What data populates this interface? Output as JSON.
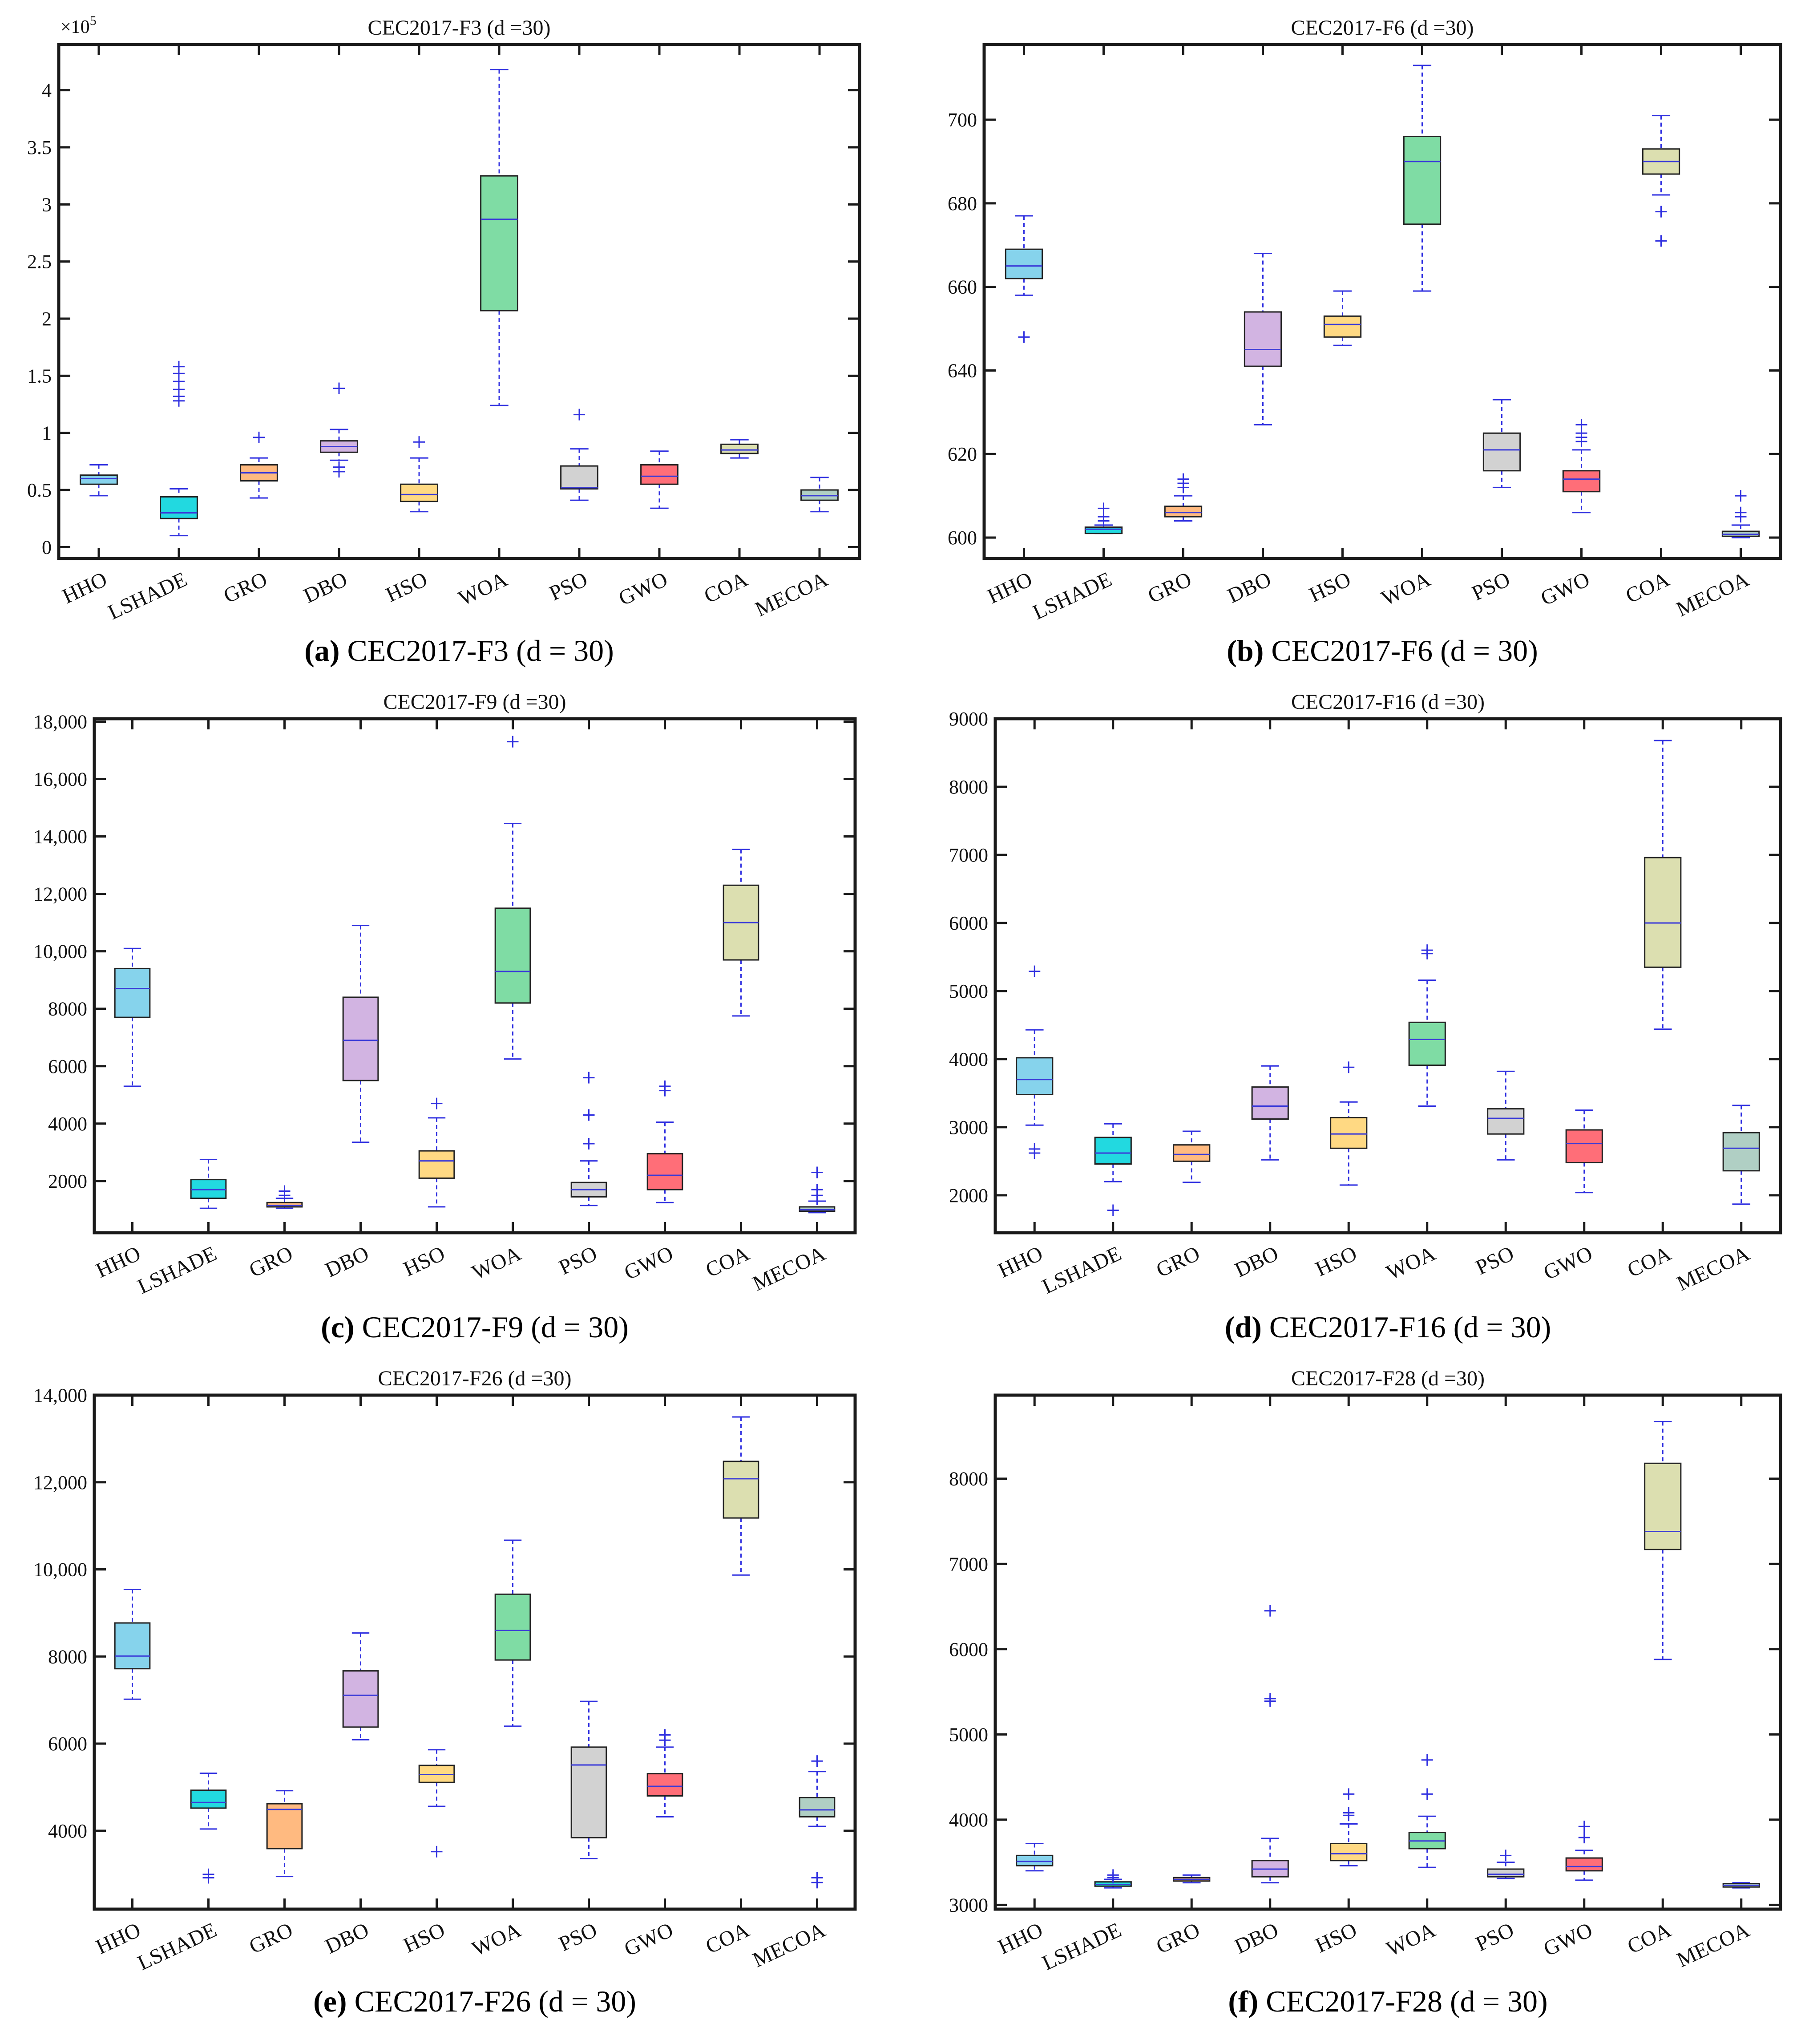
{
  "figure": {
    "categories": [
      "HHO",
      "LSHADE",
      "GRO",
      "DBO",
      "HSO",
      "WOA",
      "PSO",
      "GWO",
      "COA",
      "MECOA"
    ],
    "colors": [
      "#86d3ec",
      "#22d9e0",
      "#ffba80",
      "#d2b4e2",
      "#ffd983",
      "#7fdca4",
      "#d2d2d2",
      "#ff6e78",
      "#dcdfb0",
      "#b0cfc4"
    ]
  },
  "chart_data": [
    {
      "type": "box",
      "title": "CEC2017-F3 (d =30)",
      "caption": {
        "label": "(a)",
        "text": " CEC2017-F3 (d = 30)"
      },
      "exponent_label": "×10",
      "exponent_power": "5",
      "ylim": [
        -0.1,
        4.4
      ],
      "yticks": [
        0,
        0.5,
        1,
        1.5,
        2,
        2.5,
        3,
        3.5,
        4
      ],
      "ytick_labels": [
        "0",
        "0.5",
        "1",
        "1.5",
        "2",
        "2.5",
        "3",
        "3.5",
        "4"
      ],
      "boxes": [
        {
          "whisker_low": 0.45,
          "q1": 0.55,
          "median": 0.6,
          "q3": 0.63,
          "whisker_high": 0.72,
          "outliers": []
        },
        {
          "whisker_low": 0.1,
          "q1": 0.25,
          "median": 0.3,
          "q3": 0.44,
          "whisker_high": 0.51,
          "outliers": [
            1.28,
            1.32,
            1.38,
            1.45,
            1.52,
            1.58
          ]
        },
        {
          "whisker_low": 0.43,
          "q1": 0.58,
          "median": 0.65,
          "q3": 0.72,
          "whisker_high": 0.78,
          "outliers": [
            0.96
          ]
        },
        {
          "whisker_low": 0.76,
          "q1": 0.83,
          "median": 0.88,
          "q3": 0.93,
          "whisker_high": 1.03,
          "outliers": [
            0.66,
            0.7,
            1.39
          ]
        },
        {
          "whisker_low": 0.31,
          "q1": 0.4,
          "median": 0.46,
          "q3": 0.55,
          "whisker_high": 0.78,
          "outliers": [
            0.92
          ]
        },
        {
          "whisker_low": 1.24,
          "q1": 2.07,
          "median": 2.87,
          "q3": 3.25,
          "whisker_high": 4.18,
          "outliers": []
        },
        {
          "whisker_low": 0.41,
          "q1": 0.51,
          "median": 0.52,
          "q3": 0.71,
          "whisker_high": 0.86,
          "outliers": [
            1.16
          ]
        },
        {
          "whisker_low": 0.34,
          "q1": 0.55,
          "median": 0.62,
          "q3": 0.72,
          "whisker_high": 0.84,
          "outliers": []
        },
        {
          "whisker_low": 0.78,
          "q1": 0.82,
          "median": 0.85,
          "q3": 0.9,
          "whisker_high": 0.94,
          "outliers": []
        },
        {
          "whisker_low": 0.31,
          "q1": 0.41,
          "median": 0.45,
          "q3": 0.5,
          "whisker_high": 0.61,
          "outliers": []
        }
      ]
    },
    {
      "type": "box",
      "title": "CEC2017-F6 (d =30)",
      "caption": {
        "label": "(b)",
        "text": " CEC2017-F6 (d = 30)"
      },
      "ylim": [
        595,
        718
      ],
      "yticks": [
        600,
        620,
        640,
        660,
        680,
        700
      ],
      "ytick_labels": [
        "600",
        "620",
        "640",
        "660",
        "680",
        "700"
      ],
      "boxes": [
        {
          "whisker_low": 658,
          "q1": 662,
          "median": 665,
          "q3": 669,
          "whisker_high": 677,
          "outliers": [
            648
          ]
        },
        {
          "whisker_low": 601,
          "q1": 601,
          "median": 602,
          "q3": 602.5,
          "whisker_high": 603,
          "outliers": [
            604,
            605,
            607
          ]
        },
        {
          "whisker_low": 604,
          "q1": 605,
          "median": 606,
          "q3": 607.5,
          "whisker_high": 610,
          "outliers": [
            612,
            613,
            614
          ]
        },
        {
          "whisker_low": 627,
          "q1": 641,
          "median": 645,
          "q3": 654,
          "whisker_high": 668,
          "outliers": []
        },
        {
          "whisker_low": 646,
          "q1": 648,
          "median": 651,
          "q3": 653,
          "whisker_high": 659,
          "outliers": []
        },
        {
          "whisker_low": 659,
          "q1": 675,
          "median": 690,
          "q3": 696,
          "whisker_high": 713,
          "outliers": []
        },
        {
          "whisker_low": 612,
          "q1": 616,
          "median": 621,
          "q3": 625,
          "whisker_high": 633,
          "outliers": []
        },
        {
          "whisker_low": 606,
          "q1": 611,
          "median": 614,
          "q3": 616,
          "whisker_high": 621,
          "outliers": [
            623,
            624,
            625,
            627
          ]
        },
        {
          "whisker_low": 682,
          "q1": 687,
          "median": 690,
          "q3": 693,
          "whisker_high": 701,
          "outliers": [
            671,
            678
          ]
        },
        {
          "whisker_low": 600,
          "q1": 600.3,
          "median": 600.8,
          "q3": 601.5,
          "whisker_high": 603,
          "outliers": [
            605,
            606,
            610
          ]
        }
      ]
    },
    {
      "type": "box",
      "title": "CEC2017-F9 (d =30)",
      "caption": {
        "label": "(c)",
        "text": " CEC2017-F9 (d = 30)"
      },
      "ylim": [
        200,
        18100
      ],
      "yticks": [
        2000,
        4000,
        6000,
        8000,
        10000,
        12000,
        14000,
        16000,
        18000
      ],
      "ytick_labels": [
        "2000",
        "4000",
        "6000",
        "8000",
        "10,000",
        "12,000",
        "14,000",
        "16,000",
        "18,000"
      ],
      "boxes": [
        {
          "whisker_low": 5300,
          "q1": 7700,
          "median": 8700,
          "q3": 9400,
          "whisker_high": 10100,
          "outliers": []
        },
        {
          "whisker_low": 1050,
          "q1": 1400,
          "median": 1700,
          "q3": 2050,
          "whisker_high": 2750,
          "outliers": []
        },
        {
          "whisker_low": 1050,
          "q1": 1100,
          "median": 1150,
          "q3": 1250,
          "whisker_high": 1400,
          "outliers": [
            1500,
            1650
          ]
        },
        {
          "whisker_low": 3350,
          "q1": 5500,
          "median": 6900,
          "q3": 8400,
          "whisker_high": 10900,
          "outliers": []
        },
        {
          "whisker_low": 1100,
          "q1": 2100,
          "median": 2700,
          "q3": 3050,
          "whisker_high": 4200,
          "outliers": [
            4700
          ]
        },
        {
          "whisker_low": 6250,
          "q1": 8200,
          "median": 9300,
          "q3": 11500,
          "whisker_high": 14450,
          "outliers": [
            17300
          ]
        },
        {
          "whisker_low": 1150,
          "q1": 1450,
          "median": 1700,
          "q3": 1950,
          "whisker_high": 2700,
          "outliers": [
            3300,
            4300,
            5600
          ]
        },
        {
          "whisker_low": 1250,
          "q1": 1700,
          "median": 2200,
          "q3": 2950,
          "whisker_high": 4050,
          "outliers": [
            5150,
            5300
          ]
        },
        {
          "whisker_low": 7750,
          "q1": 9700,
          "median": 11000,
          "q3": 12300,
          "whisker_high": 13550,
          "outliers": []
        },
        {
          "whisker_low": 900,
          "q1": 950,
          "median": 1000,
          "q3": 1100,
          "whisker_high": 1300,
          "outliers": [
            1500,
            1700,
            2300
          ]
        }
      ]
    },
    {
      "type": "box",
      "title": "CEC2017-F16 (d =30)",
      "caption": {
        "label": "(d)",
        "text": " CEC2017-F16 (d = 30)"
      },
      "ylim": [
        1450,
        9000
      ],
      "yticks": [
        2000,
        3000,
        4000,
        5000,
        6000,
        7000,
        8000,
        9000
      ],
      "ytick_labels": [
        "2000",
        "3000",
        "4000",
        "5000",
        "6000",
        "7000",
        "8000",
        "9000"
      ],
      "boxes": [
        {
          "whisker_low": 3030,
          "q1": 3480,
          "median": 3700,
          "q3": 4020,
          "whisker_high": 4430,
          "outliers": [
            2620,
            2680,
            5290
          ]
        },
        {
          "whisker_low": 2200,
          "q1": 2460,
          "median": 2620,
          "q3": 2850,
          "whisker_high": 3050,
          "outliers": [
            1780
          ]
        },
        {
          "whisker_low": 2190,
          "q1": 2500,
          "median": 2600,
          "q3": 2740,
          "whisker_high": 2940,
          "outliers": []
        },
        {
          "whisker_low": 2520,
          "q1": 3120,
          "median": 3310,
          "q3": 3590,
          "whisker_high": 3900,
          "outliers": []
        },
        {
          "whisker_low": 2150,
          "q1": 2690,
          "median": 2900,
          "q3": 3140,
          "whisker_high": 3370,
          "outliers": [
            3880
          ]
        },
        {
          "whisker_low": 3310,
          "q1": 3910,
          "median": 4290,
          "q3": 4540,
          "whisker_high": 5160,
          "outliers": [
            5550,
            5600
          ]
        },
        {
          "whisker_low": 2520,
          "q1": 2900,
          "median": 3130,
          "q3": 3270,
          "whisker_high": 3820,
          "outliers": []
        },
        {
          "whisker_low": 2040,
          "q1": 2480,
          "median": 2760,
          "q3": 2960,
          "whisker_high": 3250,
          "outliers": []
        },
        {
          "whisker_low": 4440,
          "q1": 5350,
          "median": 6000,
          "q3": 6960,
          "whisker_high": 8680,
          "outliers": []
        },
        {
          "whisker_low": 1870,
          "q1": 2360,
          "median": 2690,
          "q3": 2920,
          "whisker_high": 3320,
          "outliers": []
        }
      ]
    },
    {
      "type": "box",
      "title": "CEC2017-F26 (d =30)",
      "caption": {
        "label": "(e)",
        "text": " CEC2017-F26 (d = 30)"
      },
      "ylim": [
        2200,
        14000
      ],
      "yticks": [
        4000,
        6000,
        8000,
        10000,
        12000,
        14000
      ],
      "ytick_labels": [
        "4000",
        "6000",
        "8000",
        "10,000",
        "12,000",
        "14,000"
      ],
      "boxes": [
        {
          "whisker_low": 7020,
          "q1": 7720,
          "median": 8010,
          "q3": 8770,
          "whisker_high": 9540,
          "outliers": []
        },
        {
          "whisker_low": 4040,
          "q1": 4520,
          "median": 4650,
          "q3": 4930,
          "whisker_high": 5320,
          "outliers": [
            2920,
            3000
          ]
        },
        {
          "whisker_low": 2950,
          "q1": 3590,
          "median": 4490,
          "q3": 4620,
          "whisker_high": 4920,
          "outliers": []
        },
        {
          "whisker_low": 6090,
          "q1": 6380,
          "median": 7110,
          "q3": 7670,
          "whisker_high": 8540,
          "outliers": []
        },
        {
          "whisker_low": 4560,
          "q1": 5110,
          "median": 5290,
          "q3": 5500,
          "whisker_high": 5860,
          "outliers": [
            3520
          ]
        },
        {
          "whisker_low": 6400,
          "q1": 7920,
          "median": 8600,
          "q3": 9430,
          "whisker_high": 10670,
          "outliers": []
        },
        {
          "whisker_low": 3360,
          "q1": 3840,
          "median": 5510,
          "q3": 5920,
          "whisker_high": 6970,
          "outliers": []
        },
        {
          "whisker_low": 4320,
          "q1": 4800,
          "median": 5020,
          "q3": 5310,
          "whisker_high": 5920,
          "outliers": [
            6080,
            6200
          ]
        },
        {
          "whisker_low": 9870,
          "q1": 11180,
          "median": 12080,
          "q3": 12480,
          "whisker_high": 13500,
          "outliers": []
        },
        {
          "whisker_low": 4100,
          "q1": 4320,
          "median": 4480,
          "q3": 4760,
          "whisker_high": 5360,
          "outliers": [
            2810,
            2920,
            5600
          ]
        }
      ]
    },
    {
      "type": "box",
      "title": "CEC2017-F28 (d =30)",
      "caption": {
        "label": "(f)",
        "text": " CEC2017-F28 (d = 30)"
      },
      "ylim": [
        2950,
        8980
      ],
      "yticks": [
        3000,
        4000,
        5000,
        6000,
        7000,
        8000
      ],
      "ytick_labels": [
        "3000",
        "4000",
        "5000",
        "6000",
        "7000",
        "8000"
      ],
      "boxes": [
        {
          "whisker_low": 3400,
          "q1": 3460,
          "median": 3510,
          "q3": 3580,
          "whisker_high": 3720,
          "outliers": []
        },
        {
          "whisker_low": 3200,
          "q1": 3220,
          "median": 3240,
          "q3": 3270,
          "whisker_high": 3300,
          "outliers": [
            3320,
            3350
          ]
        },
        {
          "whisker_low": 3260,
          "q1": 3280,
          "median": 3300,
          "q3": 3320,
          "whisker_high": 3350,
          "outliers": []
        },
        {
          "whisker_low": 3260,
          "q1": 3330,
          "median": 3420,
          "q3": 3520,
          "whisker_high": 3780,
          "outliers": [
            5390,
            5420,
            6450
          ]
        },
        {
          "whisker_low": 3460,
          "q1": 3520,
          "median": 3600,
          "q3": 3720,
          "whisker_high": 3950,
          "outliers": [
            4050,
            4080,
            4300
          ]
        },
        {
          "whisker_low": 3440,
          "q1": 3660,
          "median": 3750,
          "q3": 3850,
          "whisker_high": 4040,
          "outliers": [
            4300,
            4700
          ]
        },
        {
          "whisker_low": 3310,
          "q1": 3330,
          "median": 3360,
          "q3": 3420,
          "whisker_high": 3500,
          "outliers": [
            3580
          ]
        },
        {
          "whisker_low": 3290,
          "q1": 3400,
          "median": 3450,
          "q3": 3550,
          "whisker_high": 3640,
          "outliers": [
            3790,
            3920
          ]
        },
        {
          "whisker_low": 5880,
          "q1": 7170,
          "median": 7380,
          "q3": 8180,
          "whisker_high": 8670,
          "outliers": []
        },
        {
          "whisker_low": 3200,
          "q1": 3210,
          "median": 3230,
          "q3": 3250,
          "whisker_high": 3260,
          "outliers": []
        }
      ]
    }
  ]
}
